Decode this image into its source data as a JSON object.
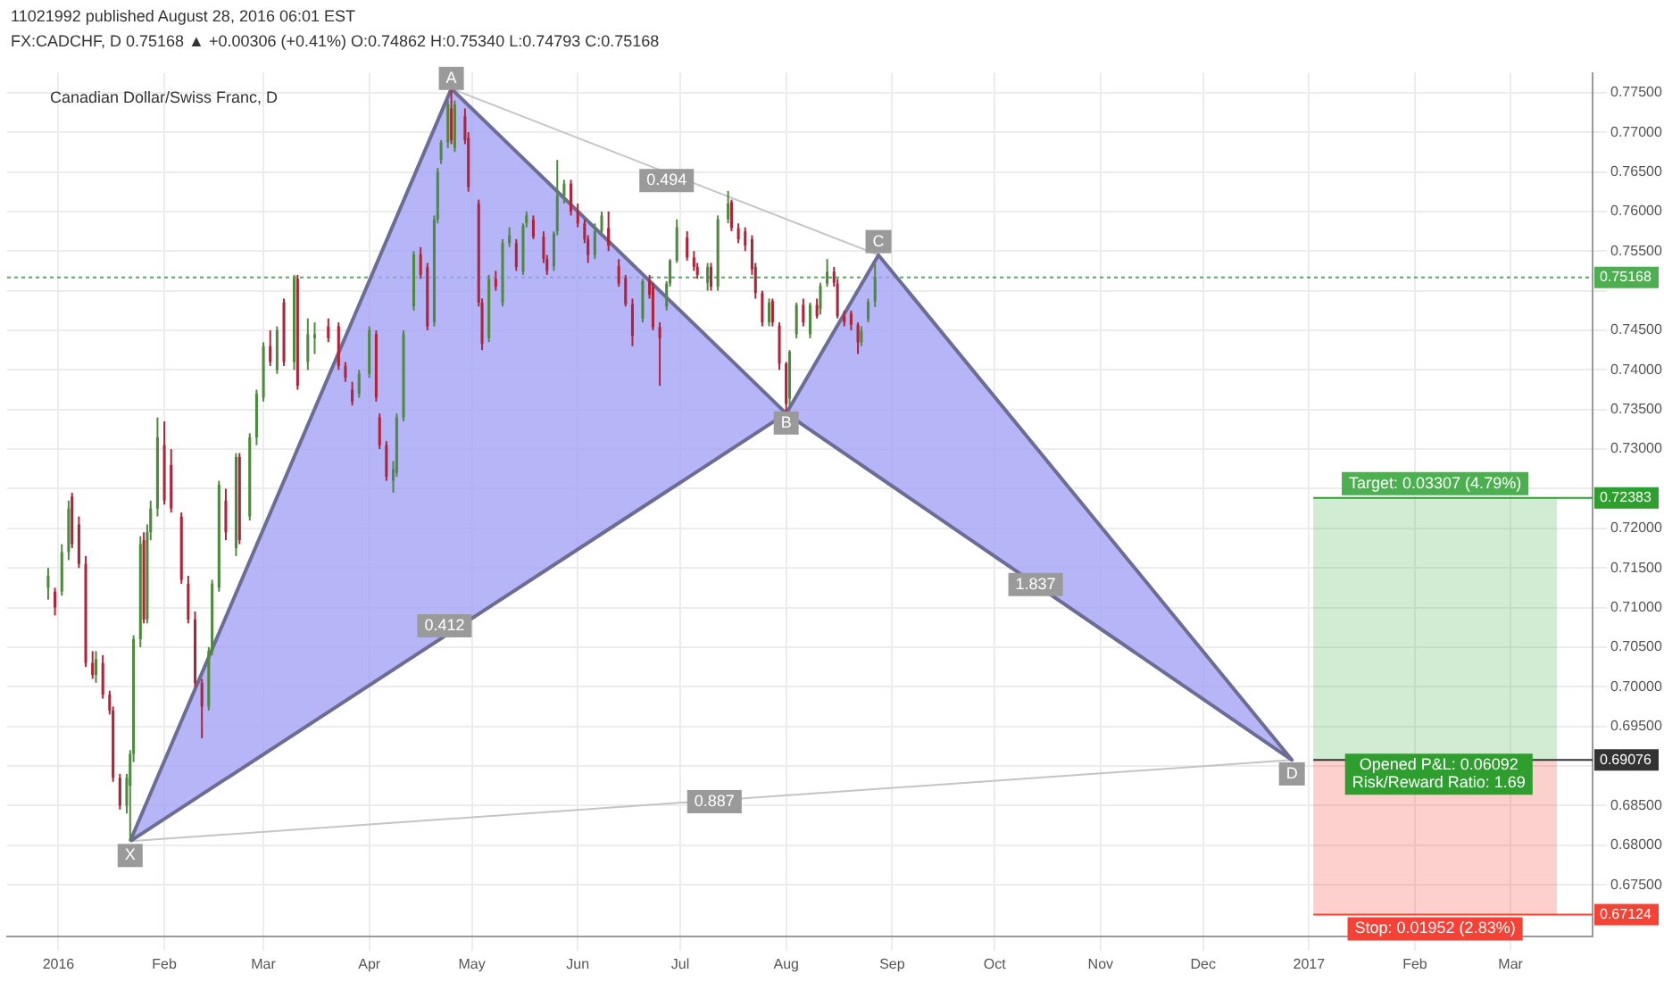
{
  "chart_data": {
    "type": "candlestick",
    "title": "Canadian Dollar/Swiss Franc, D",
    "subtitle": "FX:CADCHF, D 0.75168 ▲ +0.00306 (+0.41%) O:0.74862 H:0.75340 L:0.74793 C:0.75168",
    "series": [
      {
        "type": "candlestick",
        "x": [
          "2015-12-29",
          "2015-12-31",
          "2016-01-02",
          "2016-01-04",
          "2016-01-05",
          "2016-01-07",
          "2016-01-09",
          "2016-01-11",
          "2016-01-12",
          "2016-01-14",
          "2016-01-16",
          "2016-01-17",
          "2016-01-19",
          "2016-01-21",
          "2016-01-22",
          "2016-01-23",
          "2016-01-25",
          "2016-01-26",
          "2016-01-27",
          "2016-01-28",
          "2016-01-30",
          "2016-02-01",
          "2016-02-03",
          "2016-02-06",
          "2016-02-08",
          "2016-02-10",
          "2016-02-12",
          "2016-02-14",
          "2016-02-15",
          "2016-02-17",
          "2016-02-19",
          "2016-02-22",
          "2016-02-23",
          "2016-02-26",
          "2016-02-28",
          "2016-03-01",
          "2016-03-03",
          "2016-03-05",
          "2016-03-07",
          "2016-03-10",
          "2016-03-11",
          "2016-03-14",
          "2016-03-16",
          "2016-03-20",
          "2016-03-23",
          "2016-03-25",
          "2016-03-27",
          "2016-03-29",
          "2016-04-01",
          "2016-04-03",
          "2016-04-04",
          "2016-04-06",
          "2016-04-08",
          "2016-04-09",
          "2016-04-11",
          "2016-04-14",
          "2016-04-16",
          "2016-04-18",
          "2016-04-20",
          "2016-04-21",
          "2016-04-22",
          "2016-04-24",
          "2016-04-25",
          "2016-04-26",
          "2016-04-29",
          "2016-04-30",
          "2016-05-03",
          "2016-05-04",
          "2016-05-06",
          "2016-05-08",
          "2016-05-10",
          "2016-05-12",
          "2016-05-14",
          "2016-05-16",
          "2016-05-17",
          "2016-05-19",
          "2016-05-22",
          "2016-05-23",
          "2016-05-25",
          "2016-05-26",
          "2016-05-28",
          "2016-05-30",
          "2016-06-01",
          "2016-06-03",
          "2016-06-04",
          "2016-06-06",
          "2016-06-08",
          "2016-06-10",
          "2016-06-13",
          "2016-06-15",
          "2016-06-17",
          "2016-06-20",
          "2016-06-22",
          "2016-06-23",
          "2016-06-25",
          "2016-06-27",
          "2016-06-28",
          "2016-06-30",
          "2016-07-03",
          "2016-07-05",
          "2016-07-06",
          "2016-07-09",
          "2016-07-10",
          "2016-07-12",
          "2016-07-15",
          "2016-07-16",
          "2016-07-18",
          "2016-07-20",
          "2016-07-22",
          "2016-07-23",
          "2016-07-25",
          "2016-07-27",
          "2016-07-28",
          "2016-07-30",
          "2016-08-01",
          "2016-08-02",
          "2016-08-04",
          "2016-08-06",
          "2016-08-08",
          "2016-08-10",
          "2016-08-11",
          "2016-08-13",
          "2016-08-15",
          "2016-08-16",
          "2016-08-18",
          "2016-08-20",
          "2016-08-22",
          "2016-08-23",
          "2016-08-25",
          "2016-08-27"
        ],
        "ohlc": [
          [
            0.7125,
            0.715,
            0.711,
            0.714
          ],
          [
            0.712,
            0.7125,
            0.709,
            0.71
          ],
          [
            0.712,
            0.718,
            0.7115,
            0.717
          ],
          [
            0.717,
            0.7235,
            0.716,
            0.7225
          ],
          [
            0.724,
            0.7245,
            0.7175,
            0.718
          ],
          [
            0.7205,
            0.7215,
            0.715,
            0.7155
          ],
          [
            0.7155,
            0.7165,
            0.7025,
            0.703
          ],
          [
            0.703,
            0.7045,
            0.701,
            0.7015
          ],
          [
            0.7015,
            0.7045,
            0.7005,
            0.7035
          ],
          [
            0.703,
            0.704,
            0.6985,
            0.699
          ],
          [
            0.699,
            0.6995,
            0.6965,
            0.697
          ],
          [
            0.697,
            0.6975,
            0.688,
            0.6885
          ],
          [
            0.6885,
            0.689,
            0.6845,
            0.685
          ],
          [
            0.685,
            0.689,
            0.684,
            0.6885
          ],
          [
            0.6875,
            0.692,
            0.6805,
            0.6915
          ],
          [
            0.6915,
            0.7065,
            0.6905,
            0.706
          ],
          [
            0.706,
            0.719,
            0.705,
            0.718
          ],
          [
            0.7185,
            0.7195,
            0.708,
            0.7085
          ],
          [
            0.7085,
            0.7205,
            0.708,
            0.7195
          ],
          [
            0.7195,
            0.7235,
            0.7185,
            0.7225
          ],
          [
            0.7225,
            0.734,
            0.7215,
            0.7315
          ],
          [
            0.7305,
            0.7335,
            0.723,
            0.7235
          ],
          [
            0.728,
            0.73,
            0.722,
            0.7225
          ],
          [
            0.7215,
            0.722,
            0.713,
            0.7135
          ],
          [
            0.713,
            0.714,
            0.708,
            0.7085
          ],
          [
            0.7085,
            0.7095,
            0.7,
            0.7005
          ],
          [
            0.7005,
            0.701,
            0.6935,
            0.6975
          ],
          [
            0.6975,
            0.705,
            0.697,
            0.7045
          ],
          [
            0.7045,
            0.7135,
            0.704,
            0.713
          ],
          [
            0.7125,
            0.726,
            0.712,
            0.7255
          ],
          [
            0.7235,
            0.725,
            0.7185,
            0.7195
          ],
          [
            0.7175,
            0.7295,
            0.7165,
            0.729
          ],
          [
            0.729,
            0.7295,
            0.718,
            0.7185
          ],
          [
            0.7215,
            0.732,
            0.721,
            0.7315
          ],
          [
            0.7315,
            0.7375,
            0.7305,
            0.737
          ],
          [
            0.7365,
            0.7435,
            0.736,
            0.743
          ],
          [
            0.743,
            0.745,
            0.7405,
            0.741
          ],
          [
            0.74,
            0.7455,
            0.7395,
            0.745
          ],
          [
            0.7485,
            0.749,
            0.7405,
            0.741
          ],
          [
            0.741,
            0.752,
            0.74,
            0.7515
          ],
          [
            0.7515,
            0.752,
            0.7375,
            0.738
          ],
          [
            0.741,
            0.7465,
            0.74,
            0.7445
          ],
          [
            0.744,
            0.746,
            0.742,
            0.7445
          ],
          [
            0.7455,
            0.7465,
            0.7435,
            0.744
          ],
          [
            0.7455,
            0.746,
            0.74,
            0.7405
          ],
          [
            0.7405,
            0.741,
            0.7385,
            0.739
          ],
          [
            0.7375,
            0.7385,
            0.7355,
            0.736
          ],
          [
            0.737,
            0.74,
            0.7365,
            0.7395
          ],
          [
            0.7395,
            0.7455,
            0.739,
            0.745
          ],
          [
            0.7445,
            0.745,
            0.736,
            0.7365
          ],
          [
            0.734,
            0.7345,
            0.73,
            0.7305
          ],
          [
            0.7305,
            0.731,
            0.726,
            0.7265
          ],
          [
            0.726,
            0.7285,
            0.7245,
            0.7275
          ],
          [
            0.727,
            0.7345,
            0.7265,
            0.734
          ],
          [
            0.734,
            0.745,
            0.7335,
            0.7445
          ],
          [
            0.748,
            0.755,
            0.7475,
            0.7546
          ],
          [
            0.7546,
            0.7555,
            0.7515,
            0.752
          ],
          [
            0.753,
            0.7535,
            0.745,
            0.7455
          ],
          [
            0.746,
            0.7595,
            0.7455,
            0.759
          ],
          [
            0.759,
            0.7655,
            0.7585,
            0.765
          ],
          [
            0.7665,
            0.769,
            0.766,
            0.7687
          ],
          [
            0.7687,
            0.774,
            0.768,
            0.7735
          ],
          [
            0.773,
            0.7755,
            0.7685,
            0.769
          ],
          [
            0.768,
            0.774,
            0.7675,
            0.7735
          ],
          [
            0.772,
            0.773,
            0.7685,
            0.769
          ],
          [
            0.7693,
            0.77,
            0.7625,
            0.7631
          ],
          [
            0.761,
            0.7615,
            0.748,
            0.7485
          ],
          [
            0.7485,
            0.749,
            0.7425,
            0.7433
          ],
          [
            0.744,
            0.752,
            0.7435,
            0.7515
          ],
          [
            0.7515,
            0.7525,
            0.75,
            0.7505
          ],
          [
            0.7485,
            0.7565,
            0.748,
            0.756
          ],
          [
            0.756,
            0.758,
            0.7555,
            0.757
          ],
          [
            0.756,
            0.7565,
            0.7525,
            0.753
          ],
          [
            0.7524,
            0.7585,
            0.752,
            0.7582
          ],
          [
            0.7585,
            0.76,
            0.758,
            0.7595
          ],
          [
            0.759,
            0.7595,
            0.7565,
            0.7568
          ],
          [
            0.7568,
            0.7575,
            0.7535,
            0.754
          ],
          [
            0.754,
            0.7545,
            0.752,
            0.7525
          ],
          [
            0.7531,
            0.7575,
            0.7525,
            0.7572
          ],
          [
            0.7575,
            0.7665,
            0.757,
            0.762
          ],
          [
            0.762,
            0.764,
            0.761,
            0.7635
          ],
          [
            0.7635,
            0.764,
            0.7595,
            0.76
          ],
          [
            0.76,
            0.761,
            0.758,
            0.7585
          ],
          [
            0.7585,
            0.759,
            0.756,
            0.7565
          ],
          [
            0.7565,
            0.757,
            0.7535,
            0.7545
          ],
          [
            0.7545,
            0.7585,
            0.754,
            0.7575
          ],
          [
            0.7575,
            0.76,
            0.757,
            0.7595
          ],
          [
            0.7579,
            0.76,
            0.755,
            0.7557
          ],
          [
            0.7531,
            0.754,
            0.7505,
            0.7509
          ],
          [
            0.7516,
            0.752,
            0.748,
            0.7483
          ],
          [
            0.7483,
            0.749,
            0.743,
            0.7443
          ],
          [
            0.7465,
            0.7515,
            0.746,
            0.7512
          ],
          [
            0.7512,
            0.752,
            0.749,
            0.7495
          ],
          [
            0.7505,
            0.751,
            0.745,
            0.7454
          ],
          [
            0.7454,
            0.746,
            0.738,
            0.744
          ],
          [
            0.748,
            0.7512,
            0.7475,
            0.7509
          ],
          [
            0.7509,
            0.754,
            0.7505,
            0.7538
          ],
          [
            0.7538,
            0.759,
            0.7535,
            0.758
          ],
          [
            0.7567,
            0.7575,
            0.7538,
            0.7542
          ],
          [
            0.7542,
            0.755,
            0.7525,
            0.753
          ],
          [
            0.753,
            0.7535,
            0.7515,
            0.752
          ],
          [
            0.751,
            0.7535,
            0.75,
            0.753
          ],
          [
            0.753,
            0.7535,
            0.75,
            0.7505
          ],
          [
            0.7505,
            0.7595,
            0.75,
            0.759
          ],
          [
            0.759,
            0.7626,
            0.7585,
            0.761
          ],
          [
            0.7612,
            0.7615,
            0.7575,
            0.7579
          ],
          [
            0.7579,
            0.7585,
            0.756,
            0.7565
          ],
          [
            0.7575,
            0.758,
            0.755,
            0.7557
          ],
          [
            0.7565,
            0.757,
            0.752,
            0.7527
          ],
          [
            0.753,
            0.7535,
            0.749,
            0.7497
          ],
          [
            0.7497,
            0.75,
            0.7455,
            0.746
          ],
          [
            0.746,
            0.749,
            0.7455,
            0.7485
          ],
          [
            0.7487,
            0.749,
            0.7455,
            0.746
          ],
          [
            0.7456,
            0.746,
            0.74,
            0.7408
          ],
          [
            0.7408,
            0.741,
            0.7345,
            0.7357
          ],
          [
            0.7364,
            0.7425,
            0.7355,
            0.7423
          ],
          [
            0.7445,
            0.7485,
            0.744,
            0.7482
          ],
          [
            0.7482,
            0.749,
            0.7455,
            0.746
          ],
          [
            0.7445,
            0.7485,
            0.744,
            0.7482
          ],
          [
            0.7482,
            0.749,
            0.7465,
            0.7468
          ],
          [
            0.7477,
            0.751,
            0.747,
            0.7506
          ],
          [
            0.7509,
            0.754,
            0.7505,
            0.7524
          ],
          [
            0.7524,
            0.753,
            0.7505,
            0.751
          ],
          [
            0.7509,
            0.7515,
            0.7465,
            0.7468
          ],
          [
            0.7468,
            0.7475,
            0.7455,
            0.746
          ],
          [
            0.7471,
            0.7475,
            0.745,
            0.7457
          ],
          [
            0.7457,
            0.746,
            0.742,
            0.7435
          ],
          [
            0.7435,
            0.7455,
            0.743,
            0.7449
          ],
          [
            0.7464,
            0.749,
            0.746,
            0.7486
          ],
          [
            0.74862,
            0.7534,
            0.74793,
            0.75168
          ]
        ],
        "colors": [
          "#4e8a3e",
          "#b0243a",
          "#4e8a3e",
          "#4e8a3e",
          "#b0243a",
          "#b0243a",
          "#b0243a",
          "#b0243a",
          "#4e8a3e",
          "#b0243a",
          "#b0243a",
          "#b0243a",
          "#b0243a",
          "#4e8a3e",
          "#4e8a3e",
          "#4e8a3e",
          "#4e8a3e",
          "#b0243a",
          "#4e8a3e",
          "#4e8a3e",
          "#4e8a3e",
          "#b0243a",
          "#b0243a",
          "#b0243a",
          "#b0243a",
          "#b0243a",
          "#b0243a",
          "#4e8a3e",
          "#4e8a3e",
          "#4e8a3e",
          "#b0243a",
          "#4e8a3e",
          "#b0243a",
          "#4e8a3e",
          "#4e8a3e",
          "#4e8a3e",
          "#b0243a",
          "#4e8a3e",
          "#b0243a",
          "#4e8a3e",
          "#b0243a",
          "#4e8a3e",
          "#4e8a3e",
          "#b0243a",
          "#b0243a",
          "#b0243a",
          "#b0243a",
          "#4e8a3e",
          "#4e8a3e",
          "#b0243a",
          "#b0243a",
          "#b0243a",
          "#4e8a3e",
          "#4e8a3e",
          "#4e8a3e",
          "#4e8a3e",
          "#b0243a",
          "#b0243a",
          "#4e8a3e",
          "#4e8a3e",
          "#4e8a3e",
          "#4e8a3e",
          "#b0243a",
          "#4e8a3e",
          "#b0243a",
          "#b0243a",
          "#b0243a",
          "#b0243a",
          "#4e8a3e",
          "#b0243a",
          "#4e8a3e",
          "#4e8a3e",
          "#b0243a",
          "#4e8a3e",
          "#4e8a3e",
          "#b0243a",
          "#b0243a",
          "#b0243a",
          "#4e8a3e",
          "#4e8a3e",
          "#4e8a3e",
          "#b0243a",
          "#b0243a",
          "#b0243a",
          "#b0243a",
          "#4e8a3e",
          "#4e8a3e",
          "#b0243a",
          "#b0243a",
          "#b0243a",
          "#b0243a",
          "#4e8a3e",
          "#b0243a",
          "#b0243a",
          "#b0243a",
          "#4e8a3e",
          "#4e8a3e",
          "#4e8a3e",
          "#b0243a",
          "#b0243a",
          "#b0243a",
          "#4e8a3e",
          "#b0243a",
          "#4e8a3e",
          "#4e8a3e",
          "#b0243a",
          "#b0243a",
          "#b0243a",
          "#b0243a",
          "#b0243a",
          "#b0243a",
          "#4e8a3e",
          "#b0243a",
          "#b0243a",
          "#b0243a",
          "#4e8a3e",
          "#4e8a3e",
          "#b0243a",
          "#4e8a3e",
          "#b0243a",
          "#4e8a3e",
          "#4e8a3e",
          "#b0243a",
          "#b0243a",
          "#b0243a",
          "#b0243a",
          "#b0243a",
          "#4e8a3e",
          "#4e8a3e",
          "#4e8a3e"
        ]
      },
      {
        "type": "area",
        "x": [
          "2016-01-22",
          "2016-04-25",
          "2016-08-01",
          "2016-01-22"
        ],
        "values": [
          0.6805,
          0.7755,
          0.7345,
          0.6805
        ],
        "color": "#a3a3f5"
      },
      {
        "type": "area",
        "x": [
          "2016-08-01",
          "2016-08-28",
          "2016-12-27",
          "2016-08-01"
        ],
        "values": [
          0.7345,
          0.7545,
          0.69076,
          0.7345
        ],
        "color": "#a3a3f5"
      },
      {
        "type": "line",
        "x": [
          "2016-01-22",
          "2016-12-27"
        ],
        "values": [
          0.6805,
          0.69076
        ],
        "color": "#c4c4c4"
      },
      {
        "type": "line",
        "x": [
          "2016-04-25",
          "2016-08-28"
        ],
        "values": [
          0.7755,
          0.7545
        ],
        "color": "#c4c4c4"
      }
    ],
    "xlim": [
      "2015-12-17",
      "2017-03-25"
    ],
    "xticks": [
      {
        "value": "2016-01-01",
        "label": "2016"
      },
      {
        "value": "2016-02-01",
        "label": "Feb"
      },
      {
        "value": "2016-03-01",
        "label": "Mar"
      },
      {
        "value": "2016-04-01",
        "label": "Apr"
      },
      {
        "value": "2016-05-01",
        "label": "May"
      },
      {
        "value": "2016-06-01",
        "label": "Jun"
      },
      {
        "value": "2016-07-01",
        "label": "Jul"
      },
      {
        "value": "2016-08-01",
        "label": "Aug"
      },
      {
        "value": "2016-09-01",
        "label": "Sep"
      },
      {
        "value": "2016-10-01",
        "label": "Oct"
      },
      {
        "value": "2016-11-01",
        "label": "Nov"
      },
      {
        "value": "2016-12-01",
        "label": "Dec"
      },
      {
        "value": "2017-01-01",
        "label": "2017"
      },
      {
        "value": "2017-02-01",
        "label": "Feb"
      },
      {
        "value": "2017-03-01",
        "label": "Mar"
      }
    ],
    "ylim": [
      0.6685,
      0.7775
    ],
    "yticks": [
      {
        "value": 0.675,
        "label": "0.67500"
      },
      {
        "value": 0.68,
        "label": "0.68000"
      },
      {
        "value": 0.685,
        "label": "0.68500"
      },
      {
        "value": 0.69,
        "label": null
      },
      {
        "value": 0.695,
        "label": "0.69500"
      },
      {
        "value": 0.7,
        "label": "0.70000"
      },
      {
        "value": 0.705,
        "label": "0.70500"
      },
      {
        "value": 0.71,
        "label": "0.71000"
      },
      {
        "value": 0.715,
        "label": "0.71500"
      },
      {
        "value": 0.72,
        "label": "0.72000"
      },
      {
        "value": 0.725,
        "label": null
      },
      {
        "value": 0.73,
        "label": "0.73000"
      },
      {
        "value": 0.735,
        "label": "0.73500"
      },
      {
        "value": 0.74,
        "label": "0.74000"
      },
      {
        "value": 0.745,
        "label": "0.74500"
      },
      {
        "value": 0.75,
        "label": null
      },
      {
        "value": 0.755,
        "label": "0.75500"
      },
      {
        "value": 0.76,
        "label": "0.76000"
      },
      {
        "value": 0.765,
        "label": "0.76500"
      },
      {
        "value": 0.77,
        "label": "0.77000"
      },
      {
        "value": 0.775,
        "label": "0.77500"
      }
    ],
    "grid": true,
    "ref_lines": [
      {
        "axis": "y",
        "value": 0.75168,
        "label": "0.75168",
        "color": "#4caf50",
        "line_style": "dotted"
      },
      {
        "axis": "y",
        "value": 0.72383,
        "label": "0.72383",
        "color": "#2e9e2e",
        "line_style": "solid"
      },
      {
        "axis": "y",
        "value": 0.69076,
        "label": "0.69076",
        "color": "#333333",
        "line_style": "solid"
      },
      {
        "axis": "y",
        "value": 0.67124,
        "label": "0.67124",
        "color": "#f44336",
        "line_style": "solid"
      }
    ],
    "bands": [
      {
        "axis": "y",
        "from": 0.69076,
        "to": 0.72383,
        "label": "Target: 0.03307 (4.79%)",
        "color": "#4caf50"
      },
      {
        "axis": "y",
        "from": 0.67124,
        "to": 0.69076,
        "label": "Stop: 0.01952 (2.83%)",
        "color": "#f44336"
      }
    ],
    "annotations": [
      "11021992 published August 28, 2016 06:01 EST",
      {
        "text": "X",
        "x": "2016-01-22",
        "y": 0.6787
      },
      {
        "text": "A",
        "x": "2016-04-25",
        "y": 0.7768
      },
      {
        "text": "B",
        "x": "2016-08-01",
        "y": 0.7333
      },
      {
        "text": "C",
        "x": "2016-08-28",
        "y": 0.7562
      },
      {
        "text": "D",
        "x": "2016-12-27",
        "y": 0.689
      },
      {
        "text": "0.412",
        "x": "2016-04-23",
        "y": 0.7077
      },
      {
        "text": "0.494",
        "x": "2016-06-27",
        "y": 0.7639
      },
      {
        "text": "1.837",
        "x": "2016-10-13",
        "y": 0.7129
      },
      {
        "text": "0.887",
        "x": "2016-07-11",
        "y": 0.6855
      },
      {
        "text": "Opened P&L: 0.06092\nRisk/Reward Ratio: 1.69",
        "x": "2017-02-08",
        "y": 0.69076
      }
    ]
  }
}
